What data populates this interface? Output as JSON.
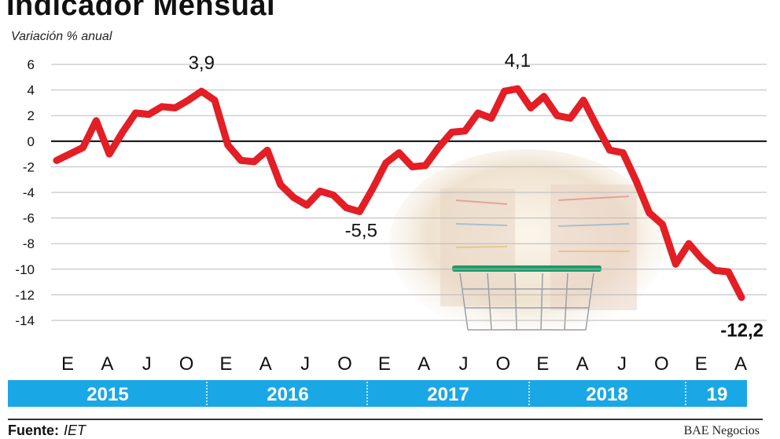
{
  "title": "Indicador Mensual",
  "ylabel": "Variación % anual",
  "source_label": "Fuente:",
  "source_value": "IET",
  "credit": "BAE Negocios",
  "chart_data": {
    "type": "line",
    "title": "Indicador Mensual",
    "ylabel": "Variación % anual",
    "ylim": [
      -14,
      6
    ],
    "yticks": [
      6,
      4,
      2,
      0,
      -2,
      -4,
      -6,
      -8,
      -10,
      -12,
      -14
    ],
    "grid": true,
    "line_color": "#e31e24",
    "band_color": "#1aa7e6",
    "month_ticks": [
      "E",
      "A",
      "J",
      "O",
      "E",
      "A",
      "J",
      "O",
      "E",
      "A",
      "J",
      "O",
      "E",
      "A",
      "J",
      "O",
      "E",
      "A"
    ],
    "years": [
      "2015",
      "2016",
      "2017",
      "2018",
      "19"
    ],
    "series": [
      {
        "values": [
          -1.5,
          -1.0,
          -0.5,
          1.6,
          -1.0,
          0.7,
          2.2,
          2.1,
          2.7,
          2.6,
          3.2,
          3.9,
          3.2,
          -0.3,
          -1.5,
          -1.6,
          -0.7,
          -3.4,
          -4.4,
          -5.0,
          -3.9,
          -4.2,
          -5.2,
          -5.5,
          -3.7,
          -1.7,
          -0.9,
          -2.0,
          -1.9,
          -0.5,
          0.7,
          0.8,
          2.2,
          1.8,
          3.9,
          4.1,
          2.6,
          3.5,
          2.0,
          1.8,
          3.2,
          1.2,
          -0.7,
          -0.9,
          -3.1,
          -5.6,
          -6.5,
          -9.6,
          -8.0,
          -9.2,
          -10.1,
          -10.2,
          -12.2
        ]
      }
    ],
    "annotations": [
      {
        "text": "3,9",
        "index": 11,
        "value": 3.9
      },
      {
        "text": "-5,5",
        "index": 23,
        "value": -5.5
      },
      {
        "text": "4,1",
        "index": 35,
        "value": 4.1
      },
      {
        "text": "-12,2",
        "index": 52,
        "value": -12.2
      }
    ]
  }
}
